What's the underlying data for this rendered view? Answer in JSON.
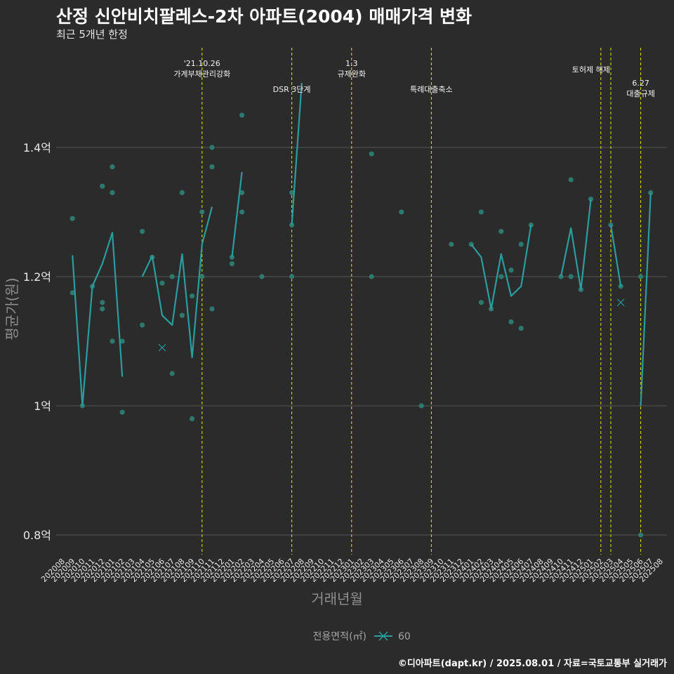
{
  "header": {
    "title": "산정 신안비치팔레스-2차 아파트(2004) 매매가격 변화",
    "subtitle": "최근 5개년 한정"
  },
  "caption": "©디아파트(dapt.kr) / 2025.08.01 / 자료=국토교통부 실거래가",
  "colors": {
    "background": "#2b2b2b",
    "series": "#2a9d9f",
    "points": "#2e7d72",
    "event_line": "#e5e500",
    "grid": "#555555"
  },
  "chart_data": {
    "type": "line",
    "title": "산정 신안비치팔레스-2차 아파트(2004) 매매가격 변화",
    "xlabel": "거래년월",
    "ylabel": "평균가(원)",
    "ylim": [
      0.75,
      1.56
    ],
    "yticks": [
      {
        "value": 0.8,
        "label": "0.8억"
      },
      {
        "value": 1.0,
        "label": "1억"
      },
      {
        "value": 1.2,
        "label": "1.2억"
      },
      {
        "value": 1.4,
        "label": "1.4억"
      }
    ],
    "categories": [
      "202008",
      "202009",
      "202010",
      "202011",
      "202012",
      "202101",
      "202102",
      "202103",
      "202104",
      "202105",
      "202106",
      "202107",
      "202108",
      "202109",
      "202110",
      "202111",
      "202112",
      "202201",
      "202202",
      "202203",
      "202204",
      "202205",
      "202206",
      "202207",
      "202208",
      "202209",
      "202210",
      "202211",
      "202212",
      "202301",
      "202302",
      "202303",
      "202304",
      "202305",
      "202306",
      "202307",
      "202308",
      "202309",
      "202310",
      "202311",
      "202312",
      "202401",
      "202402",
      "202403",
      "202404",
      "202405",
      "202406",
      "202407",
      "202408",
      "202409",
      "202410",
      "202411",
      "202412",
      "202501",
      "202502",
      "202503",
      "202504",
      "202505",
      "202506",
      "202507",
      "202508"
    ],
    "series": [
      {
        "name": "60",
        "values": [
          null,
          1.233,
          1.0,
          1.185,
          1.22,
          1.268,
          1.045,
          null,
          1.2,
          1.232,
          1.14,
          1.125,
          1.235,
          1.075,
          1.25,
          1.308,
          null,
          1.23,
          1.362,
          null,
          null,
          null,
          null,
          1.28,
          1.5,
          null,
          null,
          null,
          null,
          null,
          null,
          null,
          null,
          null,
          null,
          null,
          null,
          null,
          null,
          null,
          null,
          1.25,
          1.23,
          1.15,
          1.235,
          1.17,
          1.185,
          1.28,
          null,
          null,
          1.2,
          1.275,
          1.18,
          1.32,
          null,
          1.28,
          1.185,
          null,
          1.0,
          1.33,
          null
        ]
      }
    ],
    "scatter": [
      {
        "x": "202009",
        "y": 1.29
      },
      {
        "x": "202009",
        "y": 1.175
      },
      {
        "x": "202010",
        "y": 1.0
      },
      {
        "x": "202011",
        "y": 1.185
      },
      {
        "x": "202012",
        "y": 1.34
      },
      {
        "x": "202012",
        "y": 1.16
      },
      {
        "x": "202012",
        "y": 1.15
      },
      {
        "x": "202101",
        "y": 1.37
      },
      {
        "x": "202101",
        "y": 1.33
      },
      {
        "x": "202101",
        "y": 1.1
      },
      {
        "x": "202102",
        "y": 1.1
      },
      {
        "x": "202102",
        "y": 0.99
      },
      {
        "x": "202104",
        "y": 1.27
      },
      {
        "x": "202104",
        "y": 1.125
      },
      {
        "x": "202105",
        "y": 1.23
      },
      {
        "x": "202106",
        "y": 1.19
      },
      {
        "x": "202107",
        "y": 1.2
      },
      {
        "x": "202107",
        "y": 1.05
      },
      {
        "x": "202108",
        "y": 1.33
      },
      {
        "x": "202108",
        "y": 1.14
      },
      {
        "x": "202109",
        "y": 1.17
      },
      {
        "x": "202109",
        "y": 0.98
      },
      {
        "x": "202110",
        "y": 1.3
      },
      {
        "x": "202110",
        "y": 1.2
      },
      {
        "x": "202111",
        "y": 1.4
      },
      {
        "x": "202111",
        "y": 1.37
      },
      {
        "x": "202111",
        "y": 1.15
      },
      {
        "x": "202201",
        "y": 1.23
      },
      {
        "x": "202201",
        "y": 1.22
      },
      {
        "x": "202202",
        "y": 1.45
      },
      {
        "x": "202202",
        "y": 1.33
      },
      {
        "x": "202202",
        "y": 1.3
      },
      {
        "x": "202204",
        "y": 1.2
      },
      {
        "x": "202207",
        "y": 1.33
      },
      {
        "x": "202207",
        "y": 1.28
      },
      {
        "x": "202207",
        "y": 1.2
      },
      {
        "x": "202303",
        "y": 1.39
      },
      {
        "x": "202303",
        "y": 1.2
      },
      {
        "x": "202306",
        "y": 1.3
      },
      {
        "x": "202308",
        "y": 1.0
      },
      {
        "x": "202311",
        "y": 1.25
      },
      {
        "x": "202401",
        "y": 1.25
      },
      {
        "x": "202402",
        "y": 1.3
      },
      {
        "x": "202402",
        "y": 1.16
      },
      {
        "x": "202403",
        "y": 1.15
      },
      {
        "x": "202404",
        "y": 1.27
      },
      {
        "x": "202404",
        "y": 1.2
      },
      {
        "x": "202405",
        "y": 1.21
      },
      {
        "x": "202405",
        "y": 1.13
      },
      {
        "x": "202406",
        "y": 1.25
      },
      {
        "x": "202406",
        "y": 1.12
      },
      {
        "x": "202407",
        "y": 1.28
      },
      {
        "x": "202410",
        "y": 1.2
      },
      {
        "x": "202411",
        "y": 1.35
      },
      {
        "x": "202411",
        "y": 1.2
      },
      {
        "x": "202412",
        "y": 1.18
      },
      {
        "x": "202501",
        "y": 1.32
      },
      {
        "x": "202503",
        "y": 1.28
      },
      {
        "x": "202504",
        "y": 1.185
      },
      {
        "x": "202506",
        "y": 1.2
      },
      {
        "x": "202506",
        "y": 0.8
      },
      {
        "x": "202507",
        "y": 1.33
      }
    ],
    "markers": [
      {
        "x": "202106",
        "y": 1.09
      },
      {
        "x": "202504",
        "y": 1.16
      }
    ],
    "events": [
      {
        "x": "202110",
        "lines": [
          "'21.10.26",
          "가계부채관리강화"
        ]
      },
      {
        "x": "202207",
        "lines": [
          "DSR 3단계"
        ]
      },
      {
        "x": "202301",
        "lines": [
          "1.3",
          "규제완화"
        ]
      },
      {
        "x": "202309",
        "lines": [
          "특례대출축소"
        ]
      },
      {
        "x": "202502",
        "lines": [
          "토허제 해제"
        ]
      },
      {
        "x": "202503",
        "lines": []
      },
      {
        "x": "202506",
        "lines": [
          "6.27",
          "대출규제"
        ]
      }
    ],
    "legend": {
      "title": "전용면적(㎡)",
      "label": "60",
      "position": "bottom"
    }
  }
}
